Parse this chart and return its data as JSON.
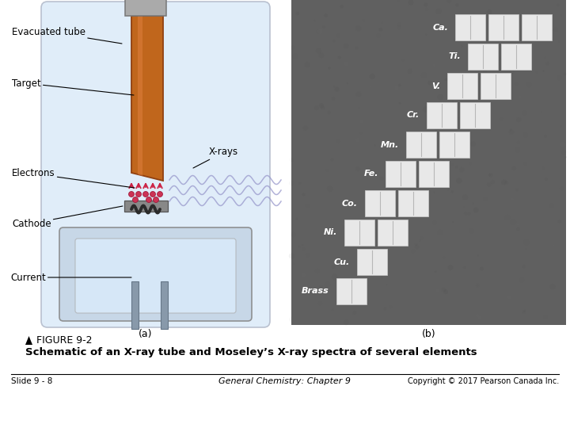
{
  "figure_title": "FIGURE 9-2",
  "figure_subtitle": "Schematic of an X-ray tube and Moseley’s X-ray spectra of several elements",
  "slide_label": "Slide 9 - 8",
  "center_label": "General Chemistry: Chapter 9",
  "copyright_label": "Copyright © 2017 Pearson Canada Inc.",
  "background_color": "#ffffff",
  "label_a": "(a)",
  "label_b": "(b)",
  "elements": [
    {
      "name": "Ca.",
      "n_blocks": 3
    },
    {
      "name": "Ti.",
      "n_blocks": 2
    },
    {
      "name": "V.",
      "n_blocks": 2
    },
    {
      "name": "Cr.",
      "n_blocks": 2
    },
    {
      "name": "Mn.",
      "n_blocks": 2
    },
    {
      "name": "Fe.",
      "n_blocks": 2
    },
    {
      "name": "Co.",
      "n_blocks": 2
    },
    {
      "name": "Ni.",
      "n_blocks": 2
    },
    {
      "name": "Cu.",
      "n_blocks": 1
    },
    {
      "name": "Brass",
      "n_blocks": 1
    }
  ]
}
